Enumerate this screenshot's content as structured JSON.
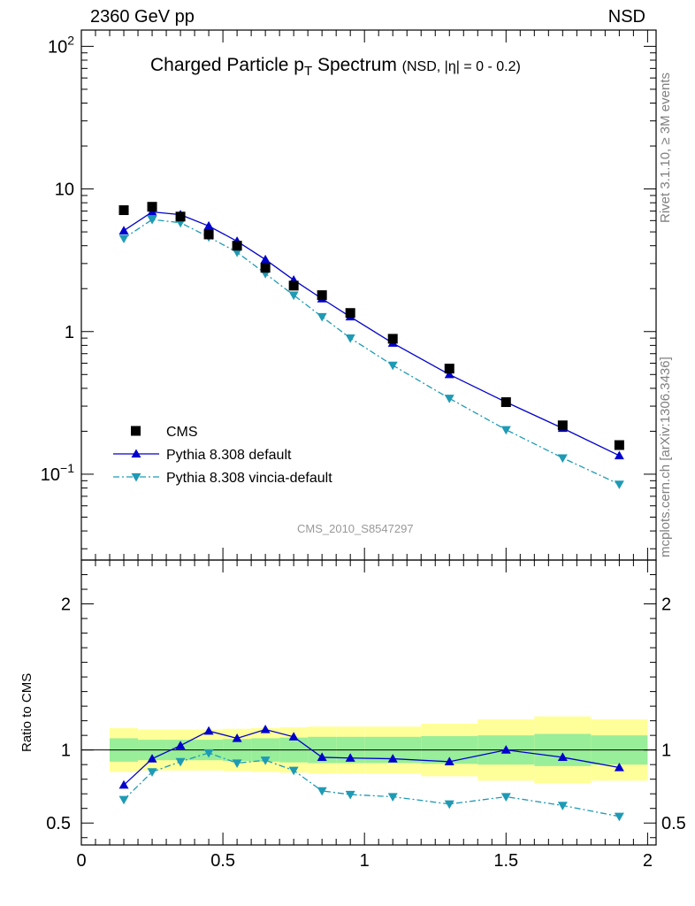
{
  "header": {
    "energy": "2360 GeV pp",
    "process": "NSD"
  },
  "title": {
    "main": "Charged Particle p",
    "sub": "T",
    "main2": " Spectrum",
    "cut": "(NSD, |η| =   0 - 0.2)"
  },
  "side_labels": {
    "rivet": "Rivet 3.1.10, ≥ 3M events",
    "source": "mcplots.cern.ch [arXiv:1306.3436]"
  },
  "watermark": "CMS_2010_S8547297",
  "ratio_ylabel": "Ratio to CMS",
  "colors": {
    "data": "#000000",
    "pythia_default": "#0000cc",
    "pythia_vincia": "#1e9ab5",
    "band_stat": "#99ee99",
    "band_total": "#ffff99"
  },
  "chart_data": [
    {
      "type": "scatter",
      "panel": "main",
      "yscale": "log",
      "xlim": [
        0,
        2.03
      ],
      "ylim": [
        0.025,
        130
      ],
      "yticks": [
        0.1,
        1,
        10,
        100
      ],
      "ytick_labels": [
        "10^-1",
        "1",
        "10",
        "10^2"
      ],
      "legend": {
        "placement": "bottom-left",
        "entries": [
          "CMS",
          "Pythia 8.308 default",
          "Pythia 8.308 vincia-default"
        ]
      },
      "x": [
        0.15,
        0.25,
        0.35,
        0.45,
        0.55,
        0.65,
        0.75,
        0.85,
        0.95,
        1.1,
        1.3,
        1.5,
        1.7,
        1.9
      ],
      "series": [
        {
          "name": "CMS",
          "marker": "square",
          "values": [
            7.1,
            7.5,
            6.4,
            4.8,
            4.0,
            2.8,
            2.1,
            1.8,
            1.35,
            0.89,
            0.55,
            0.32,
            0.22,
            0.16
          ]
        },
        {
          "name": "Pythia 8.308 default",
          "marker": "triangle-up",
          "line": "solid",
          "values": [
            5.1,
            6.9,
            6.6,
            5.5,
            4.3,
            3.2,
            2.3,
            1.7,
            1.27,
            0.83,
            0.5,
            0.32,
            0.21,
            0.135
          ]
        },
        {
          "name": "Pythia 8.308 vincia-default",
          "marker": "triangle-down",
          "line": "dashdot",
          "values": [
            4.5,
            6.1,
            5.8,
            4.6,
            3.6,
            2.55,
            1.8,
            1.27,
            0.9,
            0.58,
            0.34,
            0.205,
            0.13,
            0.085
          ]
        }
      ]
    },
    {
      "type": "line",
      "panel": "ratio",
      "xlim": [
        0,
        2.03
      ],
      "ylim": [
        0.35,
        2.3
      ],
      "xticks": [
        0,
        0.5,
        1,
        1.5,
        2
      ],
      "xtick_labels": [
        "0",
        "0.5",
        "1",
        "1.5",
        "2"
      ],
      "yticks": [
        0.5,
        1,
        2
      ],
      "ytick_labels": [
        "0.5",
        "1",
        "2"
      ],
      "ylabel": "Ratio to CMS",
      "bands": {
        "edges": [
          0.1,
          0.2,
          0.3,
          0.4,
          0.5,
          0.6,
          0.7,
          0.8,
          0.9,
          1.0,
          1.2,
          1.4,
          1.6,
          1.8,
          2.0
        ],
        "stat_low": [
          0.92,
          0.93,
          0.93,
          0.93,
          0.925,
          0.92,
          0.915,
          0.91,
          0.91,
          0.91,
          0.905,
          0.9,
          0.89,
          0.9
        ],
        "stat_high": [
          1.08,
          1.07,
          1.07,
          1.07,
          1.075,
          1.08,
          1.085,
          1.09,
          1.09,
          1.09,
          1.095,
          1.1,
          1.11,
          1.1
        ],
        "total_low": [
          0.85,
          0.86,
          0.86,
          0.86,
          0.855,
          0.85,
          0.845,
          0.84,
          0.84,
          0.84,
          0.82,
          0.79,
          0.77,
          0.79
        ],
        "total_high": [
          1.15,
          1.14,
          1.14,
          1.14,
          1.145,
          1.15,
          1.155,
          1.16,
          1.16,
          1.16,
          1.18,
          1.21,
          1.23,
          1.21
        ]
      },
      "x": [
        0.15,
        0.25,
        0.35,
        0.45,
        0.55,
        0.65,
        0.75,
        0.85,
        0.95,
        1.1,
        1.3,
        1.5,
        1.7,
        1.9
      ],
      "series": [
        {
          "name": "Pythia 8.308 default",
          "values": [
            0.76,
            0.94,
            1.03,
            1.13,
            1.08,
            1.14,
            1.09,
            0.95,
            0.945,
            0.94,
            0.92,
            1.0,
            0.95,
            0.88
          ]
        },
        {
          "name": "Pythia 8.308 vincia-default",
          "values": [
            0.66,
            0.85,
            0.92,
            0.98,
            0.91,
            0.93,
            0.86,
            0.72,
            0.695,
            0.68,
            0.63,
            0.68,
            0.62,
            0.545
          ]
        }
      ]
    }
  ]
}
